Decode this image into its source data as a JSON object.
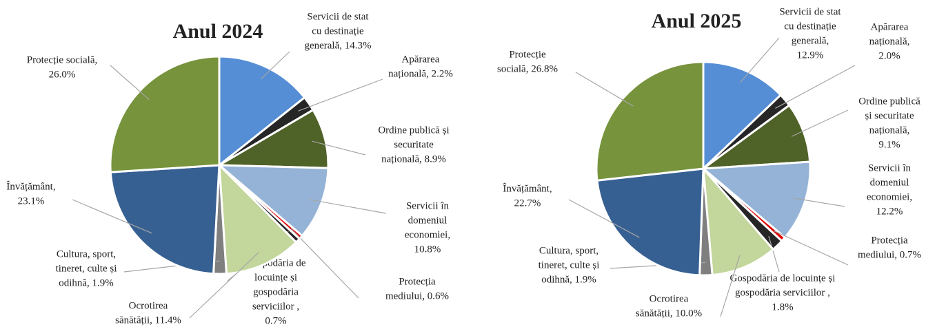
{
  "chart_data": [
    {
      "type": "pie",
      "title": "Anul 2024",
      "values": [
        14.3,
        2.2,
        8.9,
        10.8,
        0.6,
        0.7,
        11.4,
        1.9,
        23.1,
        26.0
      ],
      "value_labels": [
        [
          "Servicii de stat",
          "cu destinație",
          "generală, 14.3%"
        ],
        [
          "Apărarea",
          "națională, 2.2%"
        ],
        [
          "Ordine publică și",
          "securitate",
          "națională, 8.9%"
        ],
        [
          "Servicii în",
          "domeniul",
          "economiei,",
          "10.8%"
        ],
        [
          "Protecția",
          "mediului, 0.6%"
        ],
        [
          "Gospodăria de",
          "locuințe și",
          "gospodăria",
          "serviciilor ,",
          "0.7%"
        ],
        [
          "Ocrotirea",
          "sănătății, 11.4%"
        ],
        [
          "Cultura, sport,",
          "tineret, culte și",
          "odihnă, 1.9%"
        ],
        [
          "Învățământ,",
          "23.1%"
        ],
        [
          "Protecție socială,",
          "26.0%"
        ]
      ],
      "colors": [
        "#558ed5",
        "#262626",
        "#4f6228",
        "#95b3d7",
        "#e00000",
        "#262626",
        "#c3d69b",
        "#7f7f7f",
        "#376092",
        "#77933c"
      ]
    },
    {
      "type": "pie",
      "title": "Anul 2025",
      "values": [
        12.9,
        2.0,
        9.1,
        12.2,
        0.7,
        1.8,
        10.0,
        1.9,
        22.7,
        26.8
      ],
      "value_labels": [
        [
          "Servicii de stat",
          "cu destinație",
          "generală,",
          "12.9%"
        ],
        [
          "Apărarea",
          "națională,",
          "2.0%"
        ],
        [
          "Ordine publică",
          "și securitate",
          "națională,",
          "9.1%"
        ],
        [
          "Servicii în",
          "domeniul",
          "economiei,",
          "12.2%"
        ],
        [
          "Protecția",
          "mediului, 0.7%"
        ],
        [
          "Gospodăria de locuințe și",
          "gospodăria serviciilor ,",
          "1.8%"
        ],
        [
          "Ocrotirea",
          "sănătății, 10.0%"
        ],
        [
          "Cultura, sport,",
          "tineret, culte și",
          "odihnă, 1.9%"
        ],
        [
          "Învățământ,",
          "22.7%"
        ],
        [
          "Protecție",
          "socială, 26.8%"
        ]
      ],
      "colors": [
        "#558ed5",
        "#262626",
        "#4f6228",
        "#95b3d7",
        "#e00000",
        "#262626",
        "#c3d69b",
        "#7f7f7f",
        "#376092",
        "#77933c"
      ]
    }
  ]
}
